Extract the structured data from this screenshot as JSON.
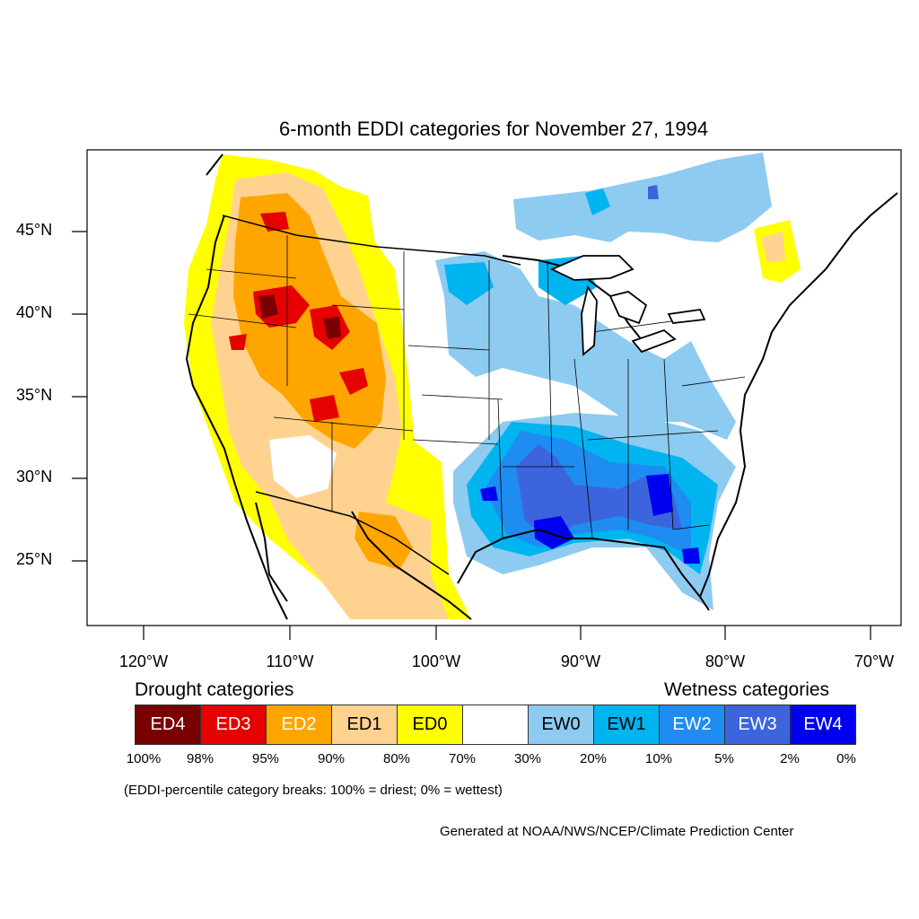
{
  "title": "6-month EDDI categories for November 27, 1994",
  "lat_labels": [
    "45°N",
    "40°N",
    "35°N",
    "30°N",
    "25°N"
  ],
  "lon_labels": [
    "120°W",
    "110°W",
    "100°W",
    "90°W",
    "80°W",
    "70°W"
  ],
  "legend": {
    "drought_heading": "Drought categories",
    "wetness_heading": "Wetness categories",
    "categories": [
      {
        "label": "ED4",
        "color": "#7a0000",
        "text_color": "#ffffff"
      },
      {
        "label": "ED3",
        "color": "#e60000",
        "text_color": "#ffffff"
      },
      {
        "label": "ED2",
        "color": "#ffa500",
        "text_color": "#ffffff"
      },
      {
        "label": "ED1",
        "color": "#ffd38f",
        "text_color": "#000000"
      },
      {
        "label": "ED0",
        "color": "#ffff00",
        "text_color": "#000000"
      },
      {
        "label": "",
        "color": "#ffffff",
        "text_color": "#000000"
      },
      {
        "label": "EW0",
        "color": "#8ecbf0",
        "text_color": "#000000"
      },
      {
        "label": "EW1",
        "color": "#00b4f0",
        "text_color": "#000000"
      },
      {
        "label": "EW2",
        "color": "#1e8cf0",
        "text_color": "#ffffff"
      },
      {
        "label": "EW3",
        "color": "#3c64dc",
        "text_color": "#ffffff"
      },
      {
        "label": "EW4",
        "color": "#0000f0",
        "text_color": "#ffffff"
      }
    ],
    "breaks": [
      "100%",
      "98%",
      "95%",
      "90%",
      "80%",
      "70%",
      "30%",
      "20%",
      "10%",
      "5%",
      "2%",
      "0%"
    ]
  },
  "note": "(EDDI-percentile category breaks: 100% = driest; 0% = wettest)",
  "credit": "Generated at NOAA/NWS/NCEP/Climate Prediction Center"
}
